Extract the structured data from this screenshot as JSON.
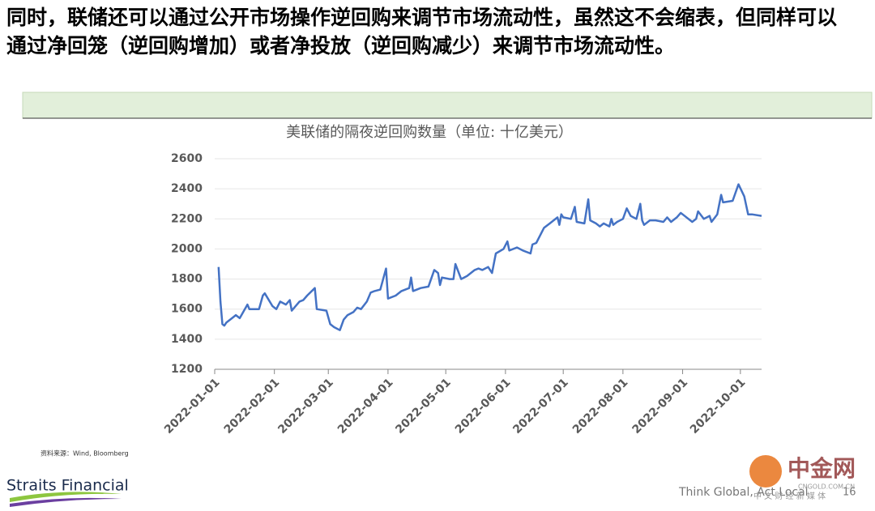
{
  "slide": {
    "heading": "同时，联储还可以通过公开市场操作逆回购来调节市场流动性，虽然这不会缩表，但同样可以通过净回笼（逆回购增加）或者净投放（逆回购减少）来调节市场流动性。",
    "source": "资料来源：Wind, Bloomberg",
    "logo": "Straits Financial",
    "slogan": "Think Global, Act Local",
    "page": "16",
    "watermark": "中金网",
    "watermark_url": "CNGOLD.COM.CN",
    "watermark_sub": "中 文 财 经 新 媒 体"
  },
  "chart_data": {
    "type": "line",
    "title": "美联储的隔夜逆回购数量（单位: 十亿美元）",
    "color": "#4472c4",
    "grid": true,
    "x": [
      "2022-01-03",
      "2022-01-04",
      "2022-01-05",
      "2022-01-06",
      "2022-01-07",
      "2022-01-10",
      "2022-01-12",
      "2022-01-14",
      "2022-01-18",
      "2022-01-19",
      "2022-01-24",
      "2022-01-26",
      "2022-01-27",
      "2022-01-31",
      "2022-02-02",
      "2022-02-04",
      "2022-02-07",
      "2022-02-09",
      "2022-02-10",
      "2022-02-14",
      "2022-02-16",
      "2022-02-18",
      "2022-02-22",
      "2022-02-23",
      "2022-02-28",
      "2022-03-02",
      "2022-03-04",
      "2022-03-07",
      "2022-03-09",
      "2022-03-11",
      "2022-03-14",
      "2022-03-16",
      "2022-03-18",
      "2022-03-21",
      "2022-03-23",
      "2022-03-25",
      "2022-03-28",
      "2022-03-31",
      "2022-04-01",
      "2022-04-05",
      "2022-04-08",
      "2022-04-12",
      "2022-04-13",
      "2022-04-14",
      "2022-04-18",
      "2022-04-22",
      "2022-04-25",
      "2022-04-27",
      "2022-04-28",
      "2022-04-29",
      "2022-05-03",
      "2022-05-05",
      "2022-05-06",
      "2022-05-09",
      "2022-05-12",
      "2022-05-16",
      "2022-05-18",
      "2022-05-20",
      "2022-05-23",
      "2022-05-25",
      "2022-05-27",
      "2022-05-31",
      "2022-06-02",
      "2022-06-03",
      "2022-06-07",
      "2022-06-10",
      "2022-06-14",
      "2022-06-15",
      "2022-06-17",
      "2022-06-21",
      "2022-06-24",
      "2022-06-28",
      "2022-06-29",
      "2022-06-30",
      "2022-07-01",
      "2022-07-05",
      "2022-07-07",
      "2022-07-08",
      "2022-07-12",
      "2022-07-14",
      "2022-07-15",
      "2022-07-18",
      "2022-07-20",
      "2022-07-22",
      "2022-07-25",
      "2022-07-26",
      "2022-07-27",
      "2022-07-29",
      "2022-08-01",
      "2022-08-03",
      "2022-08-05",
      "2022-08-08",
      "2022-08-10",
      "2022-08-11",
      "2022-08-12",
      "2022-08-15",
      "2022-08-18",
      "2022-08-22",
      "2022-08-24",
      "2022-08-26",
      "2022-08-29",
      "2022-08-31",
      "2022-09-01",
      "2022-09-06",
      "2022-09-08",
      "2022-09-09",
      "2022-09-12",
      "2022-09-15",
      "2022-09-16",
      "2022-09-19",
      "2022-09-21",
      "2022-09-22",
      "2022-09-27",
      "2022-09-30",
      "2022-10-03",
      "2022-10-05",
      "2022-10-07",
      "2022-10-12"
    ],
    "values": [
      1880,
      1650,
      1500,
      1490,
      1510,
      1540,
      1560,
      1540,
      1630,
      1600,
      1600,
      1690,
      1705,
      1620,
      1600,
      1650,
      1630,
      1660,
      1590,
      1650,
      1660,
      1690,
      1740,
      1600,
      1590,
      1500,
      1480,
      1460,
      1530,
      1560,
      1580,
      1610,
      1600,
      1650,
      1710,
      1720,
      1730,
      1870,
      1670,
      1690,
      1720,
      1740,
      1810,
      1720,
      1740,
      1750,
      1860,
      1840,
      1760,
      1810,
      1800,
      1800,
      1900,
      1800,
      1820,
      1860,
      1870,
      1860,
      1880,
      1840,
      1970,
      2000,
      2050,
      1990,
      2010,
      1990,
      1970,
      2030,
      2040,
      2140,
      2170,
      2210,
      2160,
      2230,
      2210,
      2200,
      2280,
      2180,
      2170,
      2330,
      2190,
      2170,
      2150,
      2170,
      2150,
      2200,
      2160,
      2180,
      2200,
      2270,
      2220,
      2200,
      2300,
      2190,
      2160,
      2190,
      2190,
      2180,
      2210,
      2180,
      2210,
      2240,
      2230,
      2180,
      2200,
      2250,
      2200,
      2220,
      2180,
      2230,
      2360,
      2310,
      2320,
      2430,
      2350,
      2230,
      2230,
      2220
    ],
    "xlim": [
      "2022-01-01",
      "2022-10-12"
    ],
    "xticks": [
      "2022-01-01",
      "2022-02-01",
      "2022-03-01",
      "2022-04-01",
      "2022-05-01",
      "2022-06-01",
      "2022-07-01",
      "2022-08-01",
      "2022-09-01",
      "2022-10-01"
    ],
    "ylim": [
      1200,
      2600
    ],
    "yticks": [
      1200,
      1400,
      1600,
      1800,
      2000,
      2200,
      2400,
      2600
    ]
  }
}
